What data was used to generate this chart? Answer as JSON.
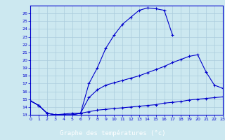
{
  "xlabel": "Graphe des températures (°c)",
  "xlim": [
    0,
    23
  ],
  "ylim": [
    13,
    27
  ],
  "xticks": [
    0,
    1,
    2,
    3,
    4,
    5,
    6,
    7,
    8,
    9,
    10,
    11,
    12,
    13,
    14,
    15,
    16,
    17,
    18,
    19,
    20,
    21,
    22,
    23
  ],
  "yticks": [
    13,
    14,
    15,
    16,
    17,
    18,
    19,
    20,
    21,
    22,
    23,
    24,
    25,
    26
  ],
  "background_color": "#cce8f0",
  "grid_color": "#aaccdd",
  "line_color": "#0000cc",
  "label_bg": "#0000aa",
  "label_fg": "#ffffff",
  "line1_x": [
    0,
    1,
    2,
    3,
    4,
    5,
    6,
    7,
    8,
    9,
    10,
    11,
    12,
    13,
    14,
    15,
    16,
    17
  ],
  "line1_y": [
    14.8,
    14.2,
    13.2,
    13.0,
    13.0,
    13.0,
    13.2,
    17.0,
    19.0,
    21.5,
    23.2,
    24.6,
    25.5,
    26.4,
    26.7,
    26.6,
    26.4,
    23.2
  ],
  "line2_x": [
    0,
    1,
    2,
    3,
    4,
    5,
    6,
    7,
    8,
    9,
    10,
    11,
    12,
    13,
    14,
    15,
    16,
    17,
    18,
    19,
    20,
    21,
    22,
    23
  ],
  "line2_y": [
    14.8,
    14.2,
    13.2,
    13.0,
    13.0,
    13.0,
    13.2,
    15.2,
    16.2,
    16.8,
    17.1,
    17.4,
    17.7,
    18.0,
    18.4,
    18.8,
    19.2,
    19.7,
    20.1,
    20.5,
    20.7,
    18.5,
    16.8,
    16.4
  ],
  "line3_x": [
    0,
    1,
    2,
    3,
    4,
    5,
    6,
    7,
    8,
    9,
    10,
    11,
    12,
    13,
    14,
    15,
    16,
    17,
    18,
    19,
    20,
    21,
    22,
    23
  ],
  "line3_y": [
    14.8,
    14.2,
    13.2,
    13.0,
    13.1,
    13.2,
    13.2,
    13.4,
    13.6,
    13.7,
    13.8,
    13.9,
    14.0,
    14.1,
    14.2,
    14.3,
    14.5,
    14.6,
    14.7,
    14.9,
    15.0,
    15.1,
    15.2,
    15.3
  ]
}
